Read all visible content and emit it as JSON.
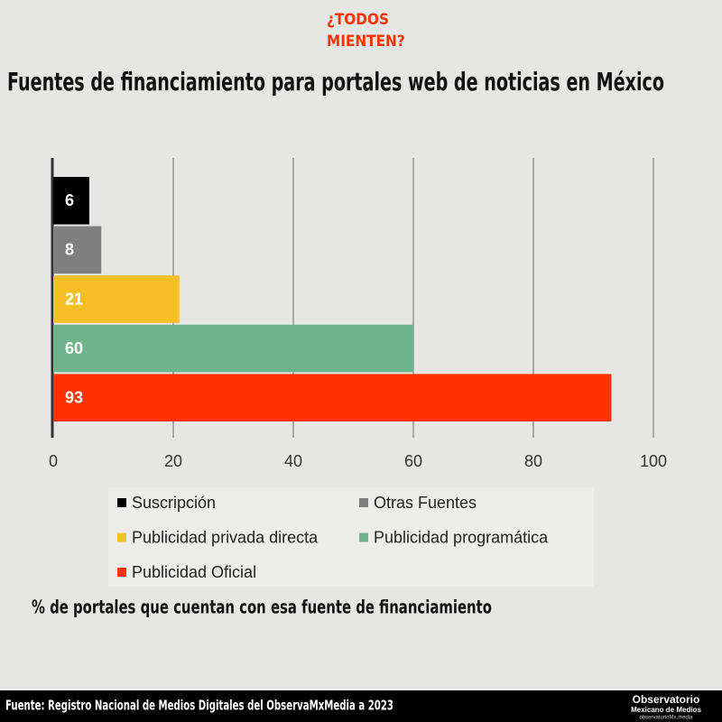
{
  "header": {
    "brand_line1": "¿TODOS",
    "brand_line2": "MIENTEN?"
  },
  "chart_data": {
    "type": "hbar",
    "title": "Fuentes de financiamiento para portales web de noticias en México",
    "x_label": "% de portales que cuentan con esa fuente de financiamiento",
    "series": [
      {
        "name": "Suscripción",
        "color": "#000000",
        "values": [
          6
        ]
      },
      {
        "name": "Otras Fuentes",
        "color": "#7f7f7f",
        "values": [
          8
        ]
      },
      {
        "name": "Publicidad privada directa",
        "color": "#f6bf26",
        "values": [
          21
        ]
      },
      {
        "name": "Publicidad programática",
        "color": "#6fb38d",
        "values": [
          60
        ]
      },
      {
        "name": "Publicidad Oficial",
        "color": "#ff3300",
        "values": [
          93
        ]
      }
    ],
    "xlim": [
      0,
      100
    ],
    "xticks": [
      0,
      20,
      40,
      60,
      80,
      100
    ],
    "grid": true,
    "legend": "bottom"
  },
  "footer": {
    "source": "Fuente: Registro Nacional de Medios Digitales del ObservaMxMedia a 2023",
    "logo_line1": "Observatorio",
    "logo_line2": "Mexicano de Medios",
    "logo_line3": "observatorioMx.media"
  }
}
